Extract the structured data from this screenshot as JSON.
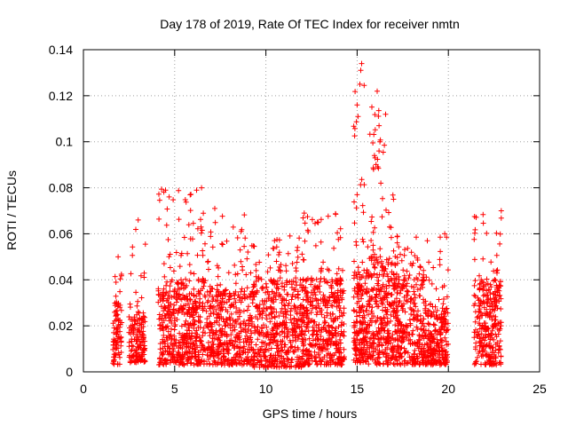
{
  "chart_data": {
    "type": "scatter",
    "title": "Day 178 of 2019, Rate Of TEC Index for receiver nmtn",
    "xlabel": "GPS time / hours",
    "ylabel": "ROTI / TECUs",
    "xlim": [
      0,
      25
    ],
    "ylim": [
      0,
      0.14
    ],
    "xticks": [
      "0",
      "5",
      "10",
      "15",
      "20",
      "25"
    ],
    "yticks": [
      "0",
      "0.02",
      "0.04",
      "0.06",
      "0.08",
      "0.1",
      "0.12",
      "0.14"
    ],
    "grid": true,
    "marker": "plus",
    "color": "#ff0000",
    "density_profile": [
      {
        "start": 1.6,
        "end": 2.1,
        "base": 0.003,
        "top": 0.03,
        "peak": 0.051,
        "n": 90
      },
      {
        "start": 2.5,
        "end": 3.4,
        "base": 0.004,
        "top": 0.025,
        "peak": 0.066,
        "n": 160
      },
      {
        "start": 4.1,
        "end": 6.8,
        "base": 0.003,
        "top": 0.04,
        "peak": 0.08,
        "n": 520
      },
      {
        "start": 6.8,
        "end": 9.2,
        "base": 0.003,
        "top": 0.035,
        "peak": 0.072,
        "n": 420
      },
      {
        "start": 9.2,
        "end": 12.0,
        "base": 0.002,
        "top": 0.04,
        "peak": 0.06,
        "n": 520
      },
      {
        "start": 12.0,
        "end": 14.3,
        "base": 0.003,
        "top": 0.04,
        "peak": 0.069,
        "n": 440
      },
      {
        "start": 14.8,
        "end": 15.6,
        "base": 0.004,
        "top": 0.045,
        "peak": 0.134,
        "n": 200
      },
      {
        "start": 15.6,
        "end": 17.0,
        "base": 0.003,
        "top": 0.05,
        "peak": 0.122,
        "n": 320
      },
      {
        "start": 17.0,
        "end": 18.7,
        "base": 0.003,
        "top": 0.04,
        "peak": 0.06,
        "n": 330
      },
      {
        "start": 18.7,
        "end": 20.0,
        "base": 0.003,
        "top": 0.03,
        "peak": 0.06,
        "n": 240
      },
      {
        "start": 21.4,
        "end": 22.9,
        "base": 0.003,
        "top": 0.04,
        "peak": 0.07,
        "n": 300
      }
    ],
    "notable_points": [
      {
        "x": 15.25,
        "y": 0.134
      },
      {
        "x": 15.2,
        "y": 0.131
      },
      {
        "x": 15.15,
        "y": 0.125
      },
      {
        "x": 16.1,
        "y": 0.122
      },
      {
        "x": 15.0,
        "y": 0.116
      },
      {
        "x": 15.05,
        "y": 0.111
      },
      {
        "x": 16.2,
        "y": 0.107
      },
      {
        "x": 16.25,
        "y": 0.1
      },
      {
        "x": 16.2,
        "y": 0.096
      },
      {
        "x": 15.95,
        "y": 0.094
      },
      {
        "x": 15.9,
        "y": 0.088
      },
      {
        "x": 16.3,
        "y": 0.082
      },
      {
        "x": 4.5,
        "y": 0.079
      },
      {
        "x": 6.2,
        "y": 0.079
      },
      {
        "x": 15.0,
        "y": 0.077
      },
      {
        "x": 7.2,
        "y": 0.071
      },
      {
        "x": 22.9,
        "y": 0.07
      },
      {
        "x": 12.1,
        "y": 0.069
      },
      {
        "x": 3.0,
        "y": 0.066
      },
      {
        "x": 19.8,
        "y": 0.06
      },
      {
        "x": 1.9,
        "y": 0.05
      }
    ]
  }
}
